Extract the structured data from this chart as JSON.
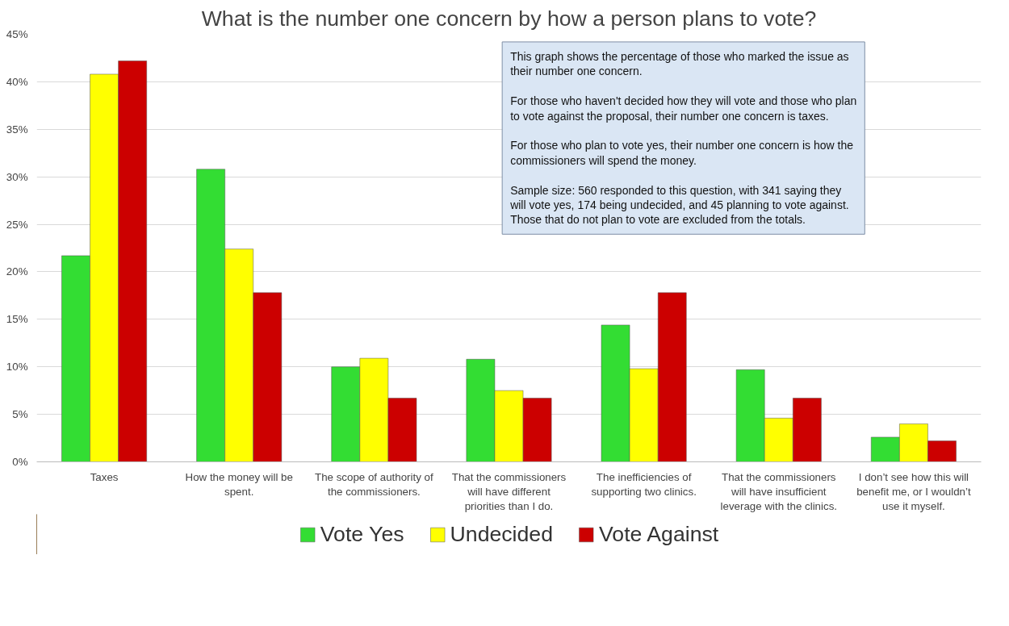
{
  "chart_data": {
    "type": "bar",
    "title": "What is the number one concern by how a person plans to vote?",
    "categories": [
      "Taxes",
      "How the money will be spent.",
      "The scope of authority of the commissioners.",
      "That the commissioners will have different priorities than I do.",
      "The inefficiencies of supporting two clinics.",
      "That the commissioners will have insufficient leverage with the clinics.",
      "I don’t see how this will benefit me, or I wouldn’t use it myself."
    ],
    "series": [
      {
        "name": "Vote Yes",
        "color": "#33dd33",
        "values": [
          21.7,
          30.8,
          10.0,
          10.8,
          14.4,
          9.7,
          2.6
        ]
      },
      {
        "name": "Undecided",
        "color": "#ffff00",
        "values": [
          40.8,
          22.4,
          10.9,
          7.5,
          9.8,
          4.6,
          4.0
        ]
      },
      {
        "name": "Vote Against",
        "color": "#cc0000",
        "values": [
          42.2,
          17.8,
          6.7,
          6.7,
          17.8,
          6.7,
          2.2
        ]
      }
    ],
    "ylim": [
      0,
      45
    ],
    "yticks": [
      {
        "value": 0,
        "label": "0%"
      },
      {
        "value": 5,
        "label": "5%"
      },
      {
        "value": 10,
        "label": "10%"
      },
      {
        "value": 15,
        "label": "15%"
      },
      {
        "value": 20,
        "label": "20%"
      },
      {
        "value": 25,
        "label": "25%"
      },
      {
        "value": 30,
        "label": "30%"
      },
      {
        "value": 35,
        "label": "35%"
      },
      {
        "value": 40,
        "label": "40%"
      },
      {
        "value": 45,
        "label": "45%"
      }
    ],
    "grid": "y",
    "legend": "bottom",
    "annotations": [
      "This graph shows the percentage of those who marked the issue as their number one concern.\nFor those who haven't decided how they will vote and those who plan to vote against the proposal, their number one concern is taxes.\nFor those who plan to vote yes, their number one concern is how the commissioners will spend the money.\nSample size: 560 responded to this question, with 341 saying they will vote yes, 174 being undecided, and 45 planning to vote against. Those that do not plan to vote are excluded from the totals."
    ]
  }
}
